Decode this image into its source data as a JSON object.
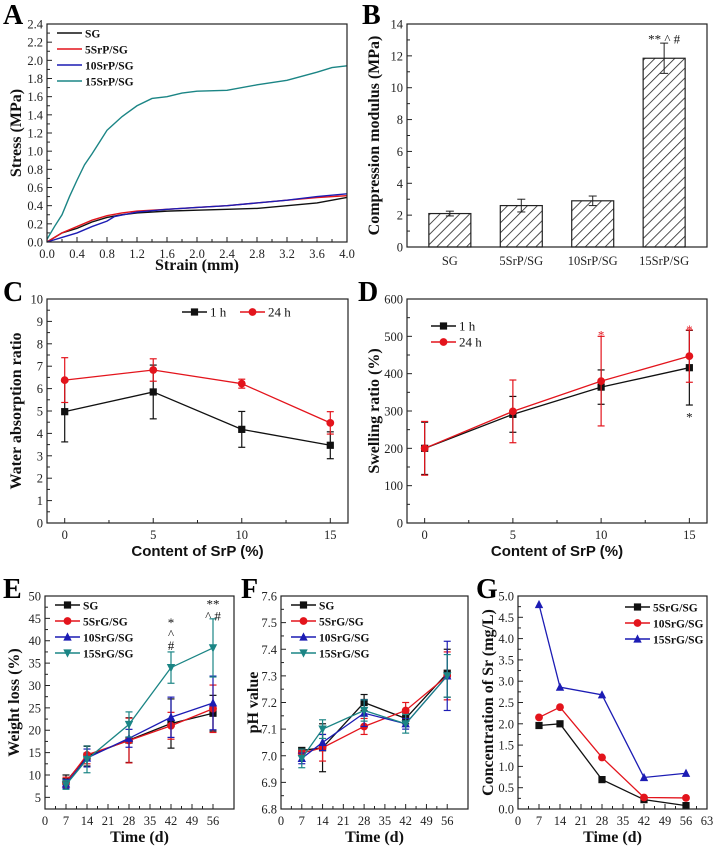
{
  "colors": {
    "black": "#111111",
    "red": "#e3141c",
    "blue": "#1c1cb4",
    "teal": "#1b8585"
  },
  "chart_data": [
    {
      "panel": "A",
      "type": "line",
      "xlabel": "Strain (mm)",
      "ylabel": "Stress (MPa)",
      "xlim": [
        0,
        4
      ],
      "ylim": [
        0,
        2.4
      ],
      "xticks": [
        0,
        0.4,
        0.8,
        1.2,
        1.6,
        2.0,
        2.4,
        2.8,
        3.2,
        3.6,
        4.0
      ],
      "xtick_labels": [
        "0.0",
        "0.4",
        "0.8",
        "1.2",
        "1.6",
        "2.0",
        "2.4",
        "2.8",
        "3.2",
        "3.6",
        "4.0"
      ],
      "yticks": [
        0,
        0.2,
        0.4,
        0.6,
        0.8,
        1.0,
        1.2,
        1.4,
        1.6,
        1.8,
        2.0,
        2.2,
        2.4
      ],
      "ytick_labels": [
        "0.0",
        "0.2",
        "0.4",
        "0.6",
        "0.8",
        "1.0",
        "1.2",
        "1.4",
        "1.6",
        "1.8",
        "2.0",
        "2.2",
        "2.4"
      ],
      "legend": "top-left",
      "legend_style": "bold",
      "marker": false,
      "series": [
        {
          "name": "SG",
          "color": "#111111",
          "x": [
            0,
            0.2,
            0.4,
            0.6,
            0.8,
            1.0,
            1.2,
            1.6,
            2.0,
            2.4,
            2.8,
            3.2,
            3.6,
            4.0
          ],
          "y": [
            0,
            0.1,
            0.15,
            0.22,
            0.27,
            0.3,
            0.32,
            0.34,
            0.35,
            0.36,
            0.37,
            0.4,
            0.43,
            0.49
          ]
        },
        {
          "name": "5SrP/SG",
          "color": "#e3141c",
          "x": [
            0,
            0.2,
            0.4,
            0.6,
            0.8,
            1.0,
            1.2,
            1.6,
            2.0,
            2.4,
            2.8,
            3.2,
            3.6,
            4.0
          ],
          "y": [
            0,
            0.1,
            0.17,
            0.24,
            0.29,
            0.32,
            0.34,
            0.36,
            0.38,
            0.4,
            0.43,
            0.46,
            0.49,
            0.51
          ]
        },
        {
          "name": "10SrP/SG",
          "color": "#1c1cb4",
          "x": [
            0,
            0.2,
            0.4,
            0.6,
            0.8,
            0.9,
            1.2,
            1.6,
            2.0,
            2.4,
            2.8,
            3.2,
            3.6,
            4.0
          ],
          "y": [
            0,
            0.05,
            0.1,
            0.17,
            0.23,
            0.28,
            0.33,
            0.36,
            0.38,
            0.4,
            0.43,
            0.46,
            0.5,
            0.53
          ]
        },
        {
          "name": "15SrP/SG",
          "color": "#1b8585",
          "x": [
            0,
            0.1,
            0.2,
            0.3,
            0.4,
            0.5,
            0.6,
            0.7,
            0.8,
            1.0,
            1.2,
            1.4,
            1.6,
            1.8,
            2.0,
            2.4,
            2.8,
            3.2,
            3.6,
            3.8,
            4.0
          ],
          "y": [
            0.03,
            0.17,
            0.3,
            0.5,
            0.68,
            0.85,
            0.97,
            1.1,
            1.23,
            1.38,
            1.5,
            1.58,
            1.6,
            1.64,
            1.66,
            1.67,
            1.73,
            1.78,
            1.87,
            1.92,
            1.94
          ]
        }
      ]
    },
    {
      "panel": "B",
      "type": "bar",
      "xlabel": "",
      "ylabel": "Compression modulus (MPa)",
      "categories": [
        "SG",
        "5SrP/SG",
        "10SrP/SG",
        "15SrP/SG"
      ],
      "values": [
        2.1,
        2.6,
        2.9,
        11.85
      ],
      "errors": [
        0.15,
        0.4,
        0.3,
        0.95
      ],
      "ylim": [
        0,
        14
      ],
      "yticks": [
        0,
        2,
        4,
        6,
        8,
        10,
        12,
        14
      ],
      "ytick_labels": [
        "0",
        "2",
        "4",
        "6",
        "8",
        "10",
        "12",
        "14"
      ],
      "fill": "hatched",
      "annotations": [
        {
          "x": 3,
          "y": 13.1,
          "text": "** ^ #",
          "color": "#111111"
        }
      ]
    },
    {
      "panel": "C",
      "type": "line",
      "xlabel": "Content of SrP (%)",
      "ylabel": "Water absorption ratio",
      "xlim": [
        -1,
        16
      ],
      "ylim": [
        0,
        10
      ],
      "xticks": [
        0,
        5,
        10,
        15
      ],
      "xtick_labels": [
        "0",
        "5",
        "10",
        "15"
      ],
      "yticks": [
        0,
        1,
        2,
        3,
        4,
        5,
        6,
        7,
        8,
        9,
        10
      ],
      "ytick_labels": [
        "0",
        "1",
        "2",
        "3",
        "4",
        "5",
        "6",
        "7",
        "8",
        "9",
        "10"
      ],
      "legend": "top-right-horizontal",
      "legend_style": "normal",
      "marker": true,
      "series": [
        {
          "name": "1 h",
          "color": "#111111",
          "marker": "square",
          "x": [
            0,
            5,
            10,
            15
          ],
          "y": [
            4.97,
            5.85,
            4.18,
            3.47
          ],
          "err": [
            1.35,
            1.2,
            0.8,
            0.6
          ]
        },
        {
          "name": "24 h",
          "color": "#e3141c",
          "marker": "circle",
          "x": [
            0,
            5,
            10,
            15
          ],
          "y": [
            6.38,
            6.83,
            6.22,
            4.47
          ],
          "err": [
            1.0,
            0.5,
            0.2,
            0.5
          ]
        }
      ]
    },
    {
      "panel": "D",
      "type": "line",
      "xlabel": "Content of SrP (%)",
      "ylabel": "Swelling ratio (%)",
      "xlim": [
        -1,
        16
      ],
      "ylim": [
        0,
        600
      ],
      "xticks": [
        0,
        5,
        10,
        15
      ],
      "xtick_labels": [
        "0",
        "5",
        "10",
        "15"
      ],
      "yticks": [
        0,
        100,
        200,
        300,
        400,
        500,
        600
      ],
      "ytick_labels": [
        "0",
        "100",
        "200",
        "300",
        "400",
        "500",
        "600"
      ],
      "legend": "top-left",
      "legend_style": "normal",
      "marker": true,
      "series": [
        {
          "name": "1 h",
          "color": "#111111",
          "marker": "square",
          "x": [
            0,
            5,
            10,
            15
          ],
          "y": [
            200,
            291,
            364,
            416
          ],
          "err": [
            70,
            48,
            46,
            100
          ]
        },
        {
          "name": "24 h",
          "color": "#e3141c",
          "marker": "circle",
          "x": [
            0,
            5,
            10,
            15
          ],
          "y": [
            200,
            299,
            380,
            447
          ],
          "err": [
            72,
            84,
            120,
            70
          ]
        }
      ],
      "annotations": [
        {
          "x": 10,
          "y": 505,
          "text": "*",
          "color": "#e3141c"
        },
        {
          "x": 15,
          "y": 520,
          "text": "*",
          "color": "#e3141c"
        },
        {
          "x": 15,
          "y": 285,
          "text": "*",
          "color": "#111111"
        }
      ]
    },
    {
      "panel": "E",
      "type": "line",
      "xlabel": "Time (d)",
      "ylabel": "Weight loss (%)",
      "xlim": [
        0,
        63
      ],
      "ylim": [
        2.4,
        50
      ],
      "xticks": [
        0,
        7,
        14,
        21,
        28,
        35,
        42,
        49,
        56
      ],
      "xtick_labels": [
        "0",
        "7",
        "14",
        "21",
        "28",
        "35",
        "42",
        "49",
        "56"
      ],
      "yticks": [
        5,
        10,
        15,
        20,
        25,
        30,
        35,
        40,
        45,
        50
      ],
      "ytick_labels": [
        "5",
        "10",
        "15",
        "20",
        "25",
        "30",
        "35",
        "40",
        "45",
        "50"
      ],
      "legend": "top-left",
      "legend_style": "bold",
      "marker": true,
      "series": [
        {
          "name": "SG",
          "color": "#111111",
          "marker": "square",
          "x": [
            7,
            14,
            28,
            42,
            56
          ],
          "y": [
            8.5,
            14.2,
            17.8,
            21.5,
            23.8
          ],
          "err": [
            1.5,
            2.2,
            5,
            5.5,
            4
          ]
        },
        {
          "name": "5SrG/SG",
          "color": "#e3141c",
          "marker": "circle",
          "x": [
            7,
            14,
            28,
            42,
            56
          ],
          "y": [
            8.3,
            14.5,
            17.7,
            21,
            24.8
          ],
          "err": [
            1.2,
            2,
            5,
            3,
            5.3
          ]
        },
        {
          "name": "10SrG/SG",
          "color": "#1c1cb4",
          "marker": "triangle-up",
          "x": [
            7,
            14,
            28,
            42,
            56
          ],
          "y": [
            8,
            13.8,
            18.2,
            22.9,
            26.1
          ],
          "err": [
            1,
            2,
            2,
            4.5,
            6
          ]
        },
        {
          "name": "15SrG/SG",
          "color": "#1b8585",
          "marker": "triangle-down",
          "x": [
            7,
            14,
            28,
            42,
            56
          ],
          "y": [
            7.8,
            13.5,
            21.3,
            34,
            38.4
          ],
          "err": [
            1,
            3,
            2.8,
            3.5,
            6.5
          ]
        }
      ],
      "annotations": [
        {
          "x": 42,
          "y": 44.2,
          "text": "*",
          "color": "#111111"
        },
        {
          "x": 42,
          "y": 41.6,
          "text": "^",
          "color": "#111111"
        },
        {
          "x": 42,
          "y": 39,
          "text": "#",
          "color": "#111111"
        },
        {
          "x": 56,
          "y": 48.3,
          "text": "**",
          "color": "#111111"
        },
        {
          "x": 56,
          "y": 45.6,
          "text": "^ #",
          "color": "#111111"
        }
      ]
    },
    {
      "panel": "F",
      "type": "line",
      "xlabel": "Time (d)",
      "ylabel": "pH value",
      "xlim": [
        0,
        63
      ],
      "ylim": [
        6.8,
        7.6
      ],
      "xticks": [
        0,
        7,
        14,
        21,
        28,
        35,
        42,
        49,
        56
      ],
      "xtick_labels": [
        "0",
        "7",
        "14",
        "21",
        "28",
        "35",
        "42",
        "49",
        "56"
      ],
      "yticks": [
        6.8,
        6.9,
        7.0,
        7.1,
        7.2,
        7.3,
        7.4,
        7.5,
        7.6
      ],
      "ytick_labels": [
        "6.8",
        "6.9",
        "7.0",
        "7.1",
        "7.2",
        "7.3",
        "7.4",
        "7.5",
        "7.6"
      ],
      "legend": "top-left",
      "legend_style": "bold",
      "marker": true,
      "series": [
        {
          "name": "SG",
          "color": "#111111",
          "marker": "square",
          "x": [
            7,
            14,
            28,
            42,
            56
          ],
          "y": [
            7.02,
            7.03,
            7.2,
            7.14,
            7.31
          ],
          "err": [
            0.01,
            0.09,
            0.03,
            0.02,
            0.09
          ]
        },
        {
          "name": "5SrG/SG",
          "color": "#e3141c",
          "marker": "circle",
          "x": [
            7,
            14,
            28,
            42,
            56
          ],
          "y": [
            7.01,
            7.03,
            7.11,
            7.17,
            7.3
          ],
          "err": [
            0.01,
            0.05,
            0.03,
            0.03,
            0.09
          ]
        },
        {
          "name": "10SrG/SG",
          "color": "#1c1cb4",
          "marker": "triangle-up",
          "x": [
            7,
            14,
            28,
            42,
            56
          ],
          "y": [
            6.99,
            7.05,
            7.16,
            7.12,
            7.3
          ],
          "err": [
            0.02,
            0.03,
            0.05,
            0.02,
            0.13
          ]
        },
        {
          "name": "15SrG/SG",
          "color": "#1b8585",
          "marker": "triangle-down",
          "x": [
            7,
            14,
            28,
            42,
            56
          ],
          "y": [
            6.99,
            7.1,
            7.17,
            7.12,
            7.3
          ],
          "err": [
            0.035,
            0.035,
            0.04,
            0.035,
            0.08
          ]
        }
      ]
    },
    {
      "panel": "G",
      "type": "line",
      "xlabel": "Time (d)",
      "ylabel": "Concentration of Sr (mg/L)",
      "xlim": [
        0,
        63
      ],
      "ylim": [
        0,
        5
      ],
      "xticks": [
        0,
        7,
        14,
        21,
        28,
        35,
        42,
        49,
        56,
        63
      ],
      "xtick_labels": [
        "0",
        "7",
        "14",
        "21",
        "28",
        "35",
        "42",
        "49",
        "56",
        "63"
      ],
      "yticks": [
        0,
        0.5,
        1,
        1.5,
        2,
        2.5,
        3,
        3.5,
        4,
        4.5,
        5
      ],
      "ytick_labels": [
        "0.0",
        "0.5",
        "1.0",
        "1.5",
        "2.0",
        "2.5",
        "3.0",
        "3.5",
        "4.0",
        "4.5",
        "5.0"
      ],
      "legend": "top-right",
      "legend_style": "bold",
      "marker": true,
      "series": [
        {
          "name": "5SrG/SG",
          "color": "#111111",
          "marker": "square",
          "x": [
            7,
            14,
            28,
            42,
            56
          ],
          "y": [
            1.96,
            2.0,
            0.69,
            0.22,
            0.08
          ]
        },
        {
          "name": "10SrG/SG",
          "color": "#e3141c",
          "marker": "circle",
          "x": [
            7,
            14,
            28,
            42,
            56
          ],
          "y": [
            2.15,
            2.39,
            1.21,
            0.27,
            0.26
          ]
        },
        {
          "name": "15SrG/SG",
          "color": "#1c1cb4",
          "marker": "triangle-up",
          "x": [
            7,
            14,
            28,
            42,
            56
          ],
          "y": [
            4.8,
            2.86,
            2.68,
            0.74,
            0.84
          ]
        }
      ]
    }
  ]
}
